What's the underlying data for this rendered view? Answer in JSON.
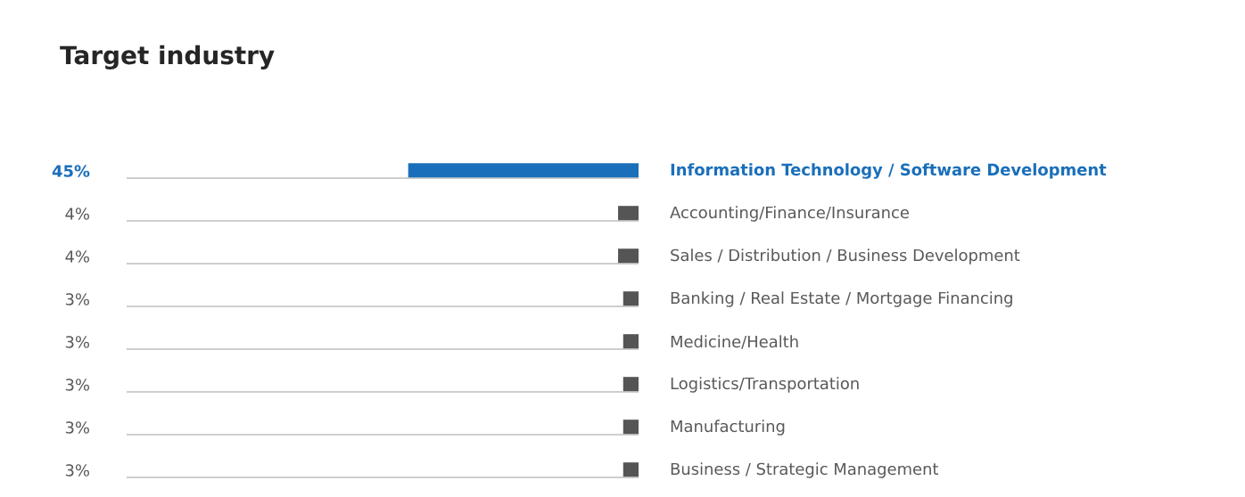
{
  "chart_data": {
    "type": "bar",
    "orientation": "horizontal",
    "title": "Target industry",
    "categories": [
      "Information Technology / Software Development",
      "Accounting/Finance/Insurance",
      "Sales / Distribution / Business Development",
      "Banking / Real Estate / Mortgage Financing",
      "Medicine/Health",
      "Logistics/Transportation",
      "Manufacturing",
      "Business / Strategic Management"
    ],
    "values": [
      45,
      4,
      4,
      3,
      3,
      3,
      3,
      3
    ],
    "value_labels": [
      "45%",
      "4%",
      "4%",
      "3%",
      "3%",
      "3%",
      "3%",
      "3%"
    ],
    "colors": [
      "#1a6fba",
      "#555555",
      "#555555",
      "#555555",
      "#555555",
      "#555555",
      "#555555",
      "#555555"
    ],
    "xlim": [
      100,
      0
    ],
    "grid": "y"
  }
}
